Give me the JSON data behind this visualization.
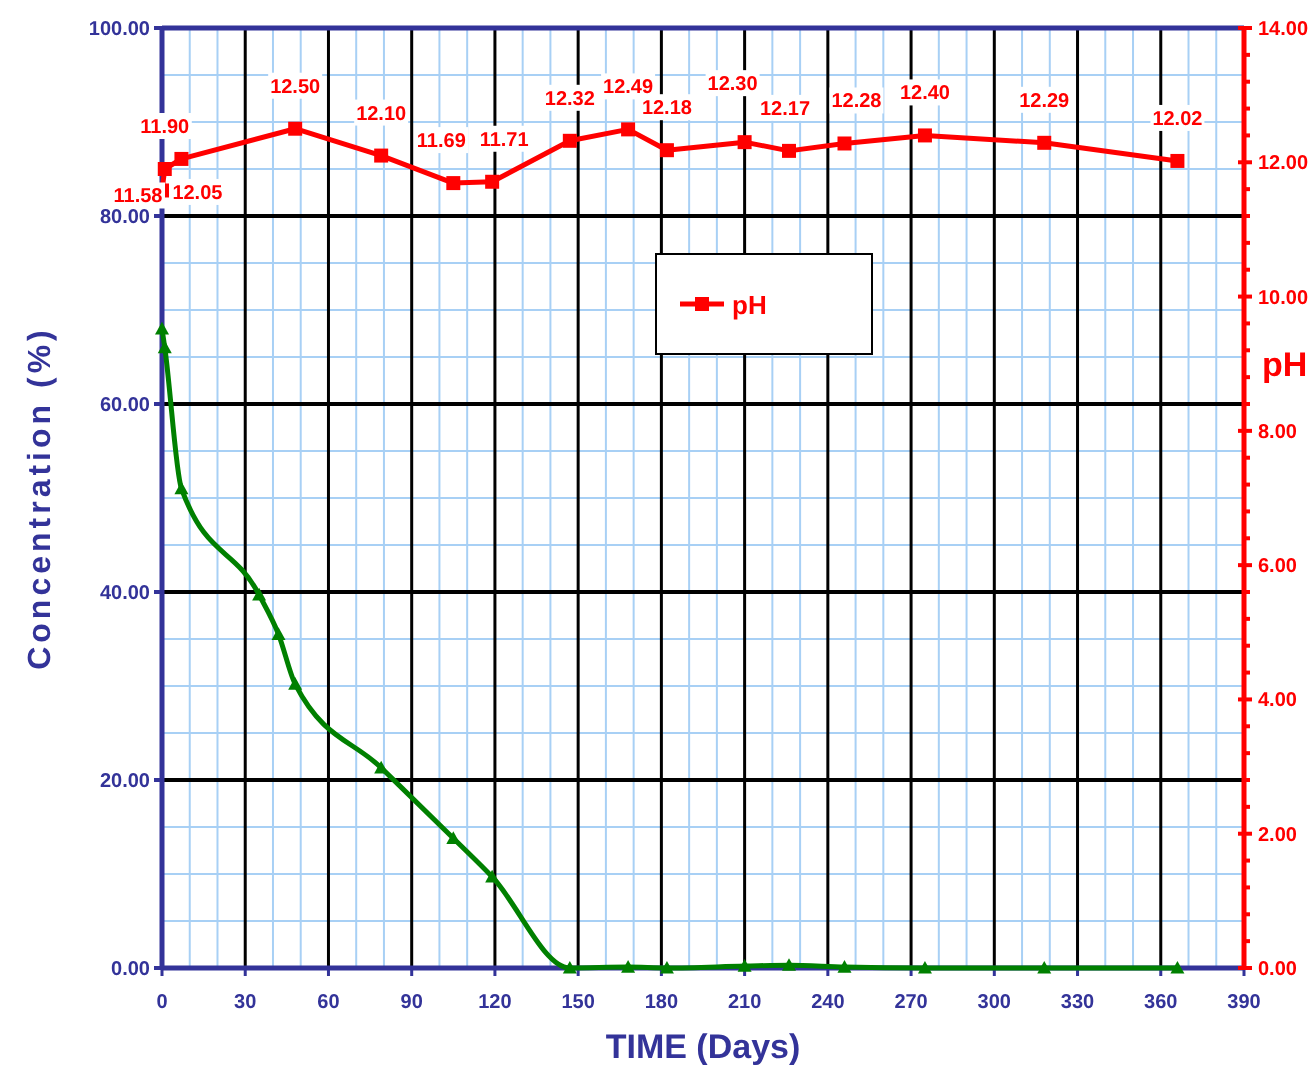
{
  "chart_data": {
    "type": "line",
    "xlabel": "TIME (Days)",
    "ylabel": "Concentration (%)",
    "y2label": "pH",
    "xlim": [
      0,
      390
    ],
    "xticks": [
      0,
      {
        "value": 10,
        "label": null
      },
      {
        "value": 20,
        "label": null
      },
      30,
      {
        "value": 40,
        "label": null
      },
      {
        "value": 50,
        "label": null
      },
      60,
      {
        "value": 70,
        "label": null
      },
      {
        "value": 80,
        "label": null
      },
      90,
      {
        "value": 100,
        "label": null
      },
      {
        "value": 110,
        "label": null
      },
      120,
      {
        "value": 130,
        "label": null
      },
      {
        "value": 140,
        "label": null
      },
      150,
      {
        "value": 160,
        "label": null
      },
      {
        "value": 170,
        "label": null
      },
      180,
      {
        "value": 190,
        "label": null
      },
      {
        "value": 200,
        "label": null
      },
      210,
      {
        "value": 220,
        "label": null
      },
      {
        "value": 230,
        "label": null
      },
      240,
      {
        "value": 250,
        "label": null
      },
      {
        "value": 260,
        "label": null
      },
      270,
      {
        "value": 280,
        "label": null
      },
      {
        "value": 290,
        "label": null
      },
      300,
      {
        "value": 310,
        "label": null
      },
      {
        "value": 320,
        "label": null
      },
      330,
      {
        "value": 340,
        "label": null
      },
      {
        "value": 350,
        "label": null
      },
      360,
      {
        "value": 370,
        "label": null
      },
      {
        "value": 380,
        "label": null
      },
      390
    ],
    "ylim": [
      0,
      100
    ],
    "yticks": [
      {
        "value": 0,
        "label": "0.00"
      },
      {
        "value": 5,
        "label": null
      },
      {
        "value": 10,
        "label": null
      },
      {
        "value": 15,
        "label": null
      },
      {
        "value": 20,
        "label": "20.00"
      },
      {
        "value": 25,
        "label": null
      },
      {
        "value": 30,
        "label": null
      },
      {
        "value": 35,
        "label": null
      },
      {
        "value": 40,
        "label": "40.00"
      },
      {
        "value": 45,
        "label": null
      },
      {
        "value": 50,
        "label": null
      },
      {
        "value": 55,
        "label": null
      },
      {
        "value": 60,
        "label": "60.00"
      },
      {
        "value": 65,
        "label": null
      },
      {
        "value": 70,
        "label": null
      },
      {
        "value": 75,
        "label": null
      },
      {
        "value": 80,
        "label": "80.00"
      },
      {
        "value": 85,
        "label": null
      },
      {
        "value": 90,
        "label": null
      },
      {
        "value": 95,
        "label": null
      },
      {
        "value": 100,
        "label": "100.00"
      }
    ],
    "y2lim": [
      0,
      14
    ],
    "y2ticks": [
      {
        "value": 0,
        "label": "0.00"
      },
      {
        "value": 0.4,
        "label": null
      },
      {
        "value": 0.8,
        "label": null
      },
      {
        "value": 1.2,
        "label": null
      },
      {
        "value": 1.6,
        "label": null
      },
      {
        "value": 2,
        "label": "2.00"
      },
      {
        "value": 2.4,
        "label": null
      },
      {
        "value": 2.8,
        "label": null
      },
      {
        "value": 3.2,
        "label": null
      },
      {
        "value": 3.6,
        "label": null
      },
      {
        "value": 4,
        "label": "4.00"
      },
      {
        "value": 4.4,
        "label": null
      },
      {
        "value": 4.8,
        "label": null
      },
      {
        "value": 5.2,
        "label": null
      },
      {
        "value": 5.6,
        "label": null
      },
      {
        "value": 6,
        "label": "6.00"
      },
      {
        "value": 6.4,
        "label": null
      },
      {
        "value": 6.8,
        "label": null
      },
      {
        "value": 7.2,
        "label": null
      },
      {
        "value": 7.6,
        "label": null
      },
      {
        "value": 8,
        "label": "8.00"
      },
      {
        "value": 8.4,
        "label": null
      },
      {
        "value": 8.8,
        "label": null
      },
      {
        "value": 9.2,
        "label": null
      },
      {
        "value": 9.6,
        "label": null
      },
      {
        "value": 10,
        "label": "10.00"
      },
      {
        "value": 10.4,
        "label": null
      },
      {
        "value": 10.8,
        "label": null
      },
      {
        "value": 11.2,
        "label": null
      },
      {
        "value": 11.6,
        "label": null
      },
      {
        "value": 12,
        "label": "12.00"
      },
      {
        "value": 12.4,
        "label": null
      },
      {
        "value": 12.8,
        "label": null
      },
      {
        "value": 13.2,
        "label": null
      },
      {
        "value": 13.6,
        "label": null
      },
      {
        "value": 14,
        "label": "14.00"
      }
    ],
    "grid": true,
    "legend": "top right",
    "line_style": "solid",
    "series": [
      {
        "color": "#008000",
        "marker": "triangle",
        "x": [
          0,
          1,
          7,
          35,
          42,
          48,
          79,
          105,
          119,
          147,
          168,
          182,
          210,
          226,
          246,
          275,
          318,
          366
        ],
        "values": [
          68,
          66,
          51,
          39.7,
          35.5,
          30.2,
          21.3,
          13.8,
          9.7,
          0,
          0.1,
          0,
          0.2,
          0.3,
          0.1,
          0,
          0,
          0
        ]
      },
      {
        "name": "pH",
        "color": "#ff0000",
        "marker": "square",
        "axis": "y2",
        "x": [
          0,
          1,
          7,
          48,
          79,
          105,
          119,
          147,
          168,
          182,
          210,
          226,
          246,
          275,
          318,
          366
        ],
        "values": [
          11.58,
          11.9,
          12.05,
          12.5,
          12.1,
          11.69,
          11.71,
          12.32,
          12.49,
          12.18,
          12.3,
          12.17,
          12.28,
          12.4,
          12.29,
          12.02
        ],
        "value_labels": [
          "11.58",
          "11.90",
          "12.05",
          "12.50",
          "12.10",
          "11.69",
          "11.71",
          "12.32",
          "12.49",
          "12.18",
          "12.30",
          "12.17",
          "12.28",
          "12.40",
          "12.29",
          "12.02"
        ]
      }
    ]
  }
}
